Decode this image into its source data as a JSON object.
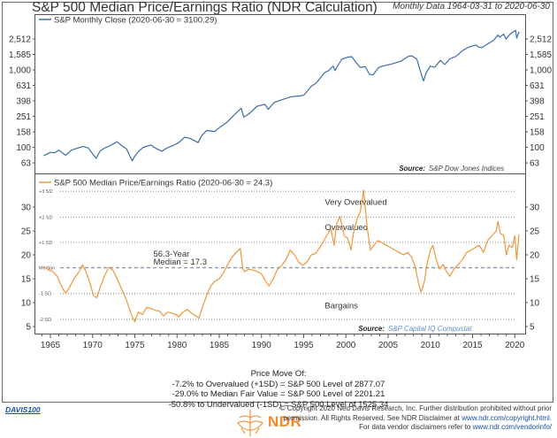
{
  "header": {
    "title": "S&P 500 Median Price/Earnings Ratio (NDR Calculation)",
    "subtitle": "Monthly Data 1964-03-31 to 2020-06-30"
  },
  "colors": {
    "price_line": "#3a6ea5",
    "pe_line": "#f0963c",
    "median_line": "#8a9aaa",
    "sd_line": "#777777",
    "source_link": "#5b8fc7",
    "ndr_orange": "#f08a2a"
  },
  "chart_data": [
    {
      "type": "line",
      "title": "S&P Monthly Close",
      "legend": "S&P Monthly Close (2020-06-30 = 3100.29)",
      "legend_placement": "top-left",
      "yscale": "log",
      "ylim": [
        50,
        3600
      ],
      "yticks": [
        63,
        100,
        158,
        251,
        398,
        631,
        1000,
        1585,
        2512
      ],
      "ytick_labels": [
        "63",
        "100",
        "158",
        "251",
        "398",
        "631",
        "1,000",
        "1,585",
        "2,512"
      ],
      "xlim": [
        1963.3,
        2020.9
      ],
      "source_label": "Source:",
      "source": "S&P Dow Jones Indices",
      "series": [
        {
          "name": "S&P Monthly Close",
          "x": [
            1964.2,
            1965.0,
            1965.5,
            1966.0,
            1966.8,
            1967.5,
            1968.0,
            1968.9,
            1969.5,
            1970.4,
            1970.9,
            1971.5,
            1972.0,
            1972.9,
            1973.5,
            1974.0,
            1974.7,
            1975.0,
            1975.5,
            1976.0,
            1976.9,
            1977.5,
            1978.2,
            1978.8,
            1979.5,
            1980.2,
            1980.9,
            1981.5,
            1982.5,
            1982.9,
            1983.5,
            1984.5,
            1985.0,
            1985.9,
            1986.5,
            1987.6,
            1987.9,
            1988.5,
            1989.5,
            1990.4,
            1990.8,
            1991.5,
            1992.5,
            1993.5,
            1994.5,
            1995.0,
            1995.9,
            1996.5,
            1997.5,
            1997.9,
            1998.5,
            1998.7,
            1999.5,
            2000.2,
            2000.7,
            2001.2,
            2001.7,
            2002.3,
            2002.8,
            2003.2,
            2003.9,
            2004.5,
            2005.5,
            2006.5,
            2007.4,
            2007.8,
            2008.4,
            2008.9,
            2009.2,
            2009.5,
            2010.0,
            2010.5,
            2011.2,
            2011.7,
            2012.3,
            2013.0,
            2013.9,
            2014.5,
            2015.4,
            2015.7,
            2016.1,
            2016.8,
            2017.5,
            2018.0,
            2018.2,
            2018.7,
            2018.95,
            2019.5,
            2019.9,
            2020.1,
            2020.22,
            2020.5
          ],
          "y": [
            78,
            86,
            85,
            92,
            79,
            92,
            96,
            103,
            98,
            72,
            90,
            99,
            104,
            118,
            104,
            96,
            67,
            77,
            90,
            100,
            107,
            97,
            89,
            98,
            105,
            115,
            135,
            131,
            115,
            140,
            165,
            160,
            180,
            210,
            245,
            320,
            245,
            270,
            340,
            360,
            310,
            380,
            415,
            450,
            460,
            470,
            615,
            680,
            930,
            970,
            1120,
            980,
            1370,
            1460,
            1480,
            1250,
            1080,
            1100,
            880,
            860,
            1080,
            1130,
            1200,
            1290,
            1500,
            1520,
            1380,
            900,
            720,
            920,
            1120,
            1080,
            1330,
            1170,
            1390,
            1490,
            1800,
            1960,
            2100,
            1970,
            1940,
            2170,
            2420,
            2820,
            2650,
            2900,
            2500,
            2940,
            3140,
            3240,
            2580,
            3100
          ]
        }
      ]
    },
    {
      "type": "line",
      "title": "S&P 500 Median Price/Earnings Ratio",
      "legend": "S&P 500 Median Price/Earnings Ratio (2020-06-30 = 24.3)",
      "legend_placement": "top-left",
      "ylim": [
        3,
        36
      ],
      "yticks": [
        5,
        10,
        15,
        20,
        25,
        30
      ],
      "xlim": [
        1963.3,
        2020.9
      ],
      "xticks": [
        1965,
        1970,
        1975,
        1980,
        1985,
        1990,
        1995,
        2000,
        2005,
        2010,
        2015,
        2020
      ],
      "source_label": "Source:",
      "source": "S&P Capital IQ Compustat",
      "reference_lines": [
        {
          "label": "+3 SD",
          "value": 33.3,
          "style": "dotted"
        },
        {
          "label": "+2 SD",
          "value": 27.9,
          "style": "dotted"
        },
        {
          "label": "+1 SD",
          "value": 22.6,
          "style": "dotted"
        },
        {
          "label": "Median",
          "value": 17.3,
          "style": "dashed"
        },
        {
          "label": "-1 SD",
          "value": 11.9,
          "style": "dotted"
        },
        {
          "label": "-2 SD",
          "value": 6.5,
          "style": "dotted"
        }
      ],
      "annotations": [
        {
          "text": "Very Overvalued",
          "x": 1997.5,
          "y": 30.5
        },
        {
          "text": "Overvalued",
          "x": 1997.5,
          "y": 25.2
        },
        {
          "text": "56.3-Year",
          "x": 1977.2,
          "y": 19.6
        },
        {
          "text": "Median = 17.3",
          "x": 1977.2,
          "y": 18.0
        },
        {
          "text": "Bargains",
          "x": 1997.5,
          "y": 8.8
        }
      ],
      "series": [
        {
          "name": "S&P 500 Median P/E",
          "x": [
            1964.2,
            1964.8,
            1965.3,
            1965.8,
            1966.3,
            1966.8,
            1967.2,
            1967.8,
            1968.3,
            1968.8,
            1969.2,
            1969.7,
            1970.1,
            1970.5,
            1970.9,
            1971.4,
            1971.9,
            1972.4,
            1972.9,
            1973.4,
            1973.9,
            1974.3,
            1974.7,
            1975.0,
            1975.4,
            1975.9,
            1976.4,
            1976.9,
            1977.4,
            1977.9,
            1978.4,
            1978.9,
            1979.4,
            1979.9,
            1980.2,
            1980.7,
            1981.2,
            1981.7,
            1982.2,
            1982.6,
            1983.0,
            1983.5,
            1984.0,
            1984.5,
            1985.0,
            1985.5,
            1986.0,
            1986.5,
            1987.0,
            1987.5,
            1987.8,
            1988.0,
            1988.5,
            1989.0,
            1989.5,
            1990.0,
            1990.5,
            1990.9,
            1991.4,
            1991.9,
            1992.4,
            1992.9,
            1993.4,
            1993.9,
            1994.4,
            1994.9,
            1995.4,
            1995.9,
            1996.4,
            1996.9,
            1997.4,
            1997.9,
            1998.2,
            1998.6,
            1998.9,
            1999.3,
            1999.8,
            2000.2,
            2000.6,
            2000.9,
            2001.3,
            2001.7,
            2002.1,
            2002.5,
            2002.9,
            2003.3,
            2003.8,
            2004.3,
            2004.8,
            2005.3,
            2005.8,
            2006.3,
            2006.8,
            2007.3,
            2007.8,
            2008.2,
            2008.6,
            2008.9,
            2009.3,
            2009.6,
            2010.0,
            2010.3,
            2010.7,
            2011.1,
            2011.5,
            2011.9,
            2012.3,
            2012.8,
            2013.3,
            2013.8,
            2014.3,
            2014.8,
            2015.3,
            2015.8,
            2016.3,
            2016.8,
            2017.3,
            2017.8,
            2018.0,
            2018.3,
            2018.7,
            2019.0,
            2019.3,
            2019.7,
            2020.0,
            2020.22,
            2020.5
          ],
          "y": [
            17.6,
            16.8,
            16.5,
            15.5,
            13.5,
            11.9,
            13.0,
            15.0,
            16.2,
            17.9,
            16.5,
            14.0,
            11.5,
            11.0,
            13.2,
            15.5,
            17.4,
            16.8,
            15.0,
            13.0,
            11.0,
            9.0,
            7.0,
            6.0,
            8.0,
            7.5,
            9.0,
            8.8,
            8.4,
            8.2,
            7.2,
            8.0,
            7.8,
            7.5,
            7.0,
            8.0,
            8.6,
            7.8,
            7.2,
            6.8,
            9.0,
            11.5,
            13.5,
            14.5,
            15.0,
            16.2,
            18.0,
            19.5,
            20.5,
            21.3,
            17.0,
            16.5,
            17.0,
            16.8,
            16.5,
            16.0,
            14.5,
            13.5,
            15.0,
            17.0,
            17.8,
            19.0,
            21.0,
            20.0,
            18.5,
            17.8,
            18.5,
            20.0,
            20.3,
            21.5,
            23.0,
            24.5,
            25.5,
            22.0,
            26.5,
            28.0,
            24.0,
            23.5,
            21.0,
            24.5,
            27.5,
            29.0,
            33.5,
            26.0,
            21.0,
            22.0,
            23.0,
            22.5,
            22.0,
            21.5,
            21.0,
            20.5,
            20.0,
            20.5,
            19.5,
            17.5,
            14.0,
            12.2,
            14.5,
            18.0,
            21.0,
            22.0,
            19.0,
            17.0,
            18.0,
            16.5,
            15.5,
            17.0,
            18.0,
            19.0,
            20.5,
            21.0,
            21.5,
            22.0,
            20.5,
            23.0,
            24.0,
            25.0,
            27.0,
            24.5,
            24.0,
            20.0,
            22.0,
            21.5,
            24.0,
            19.0,
            24.3
          ]
        }
      ]
    }
  ],
  "price_move": {
    "heading": "Price Move Of:",
    "lines": [
      "-7.2% to Overvalued (+1SD) = S&P 500 Level of 2877.07",
      "-29.0% to Median Fair Value = S&P 500 Level of 2201.21",
      "-50.8% to Undervalued (-1SD) = S&P 500 Level of 1525.34"
    ]
  },
  "footer": {
    "chart_code": "DAVIS100",
    "logo_text": "NDR",
    "copyright_1": "© Copyright 2020 Ned Davis Research, Inc. Further distribution prohibited without prior",
    "copyright_2": "permission. All Rights Reserved. See NDR Disclaimer at",
    "copyright_link_1": "www.ndr.com/copyright.html.",
    "copyright_3": "For data vendor disclaimers refer to",
    "copyright_link_2": "www.ndr.com/vendorinfo/"
  }
}
